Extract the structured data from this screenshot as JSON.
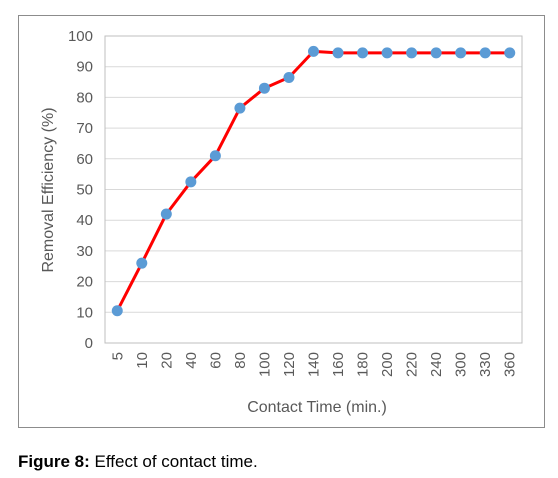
{
  "caption": {
    "label": "Figure 8:",
    "text": "Effect of contact time."
  },
  "chart_data": {
    "type": "line",
    "title": "",
    "xlabel": "Contact Time (min.)",
    "ylabel": "Removal Efficiency (%)",
    "ylim": [
      0,
      100
    ],
    "yticks": [
      "0",
      "10",
      "20",
      "30",
      "40",
      "50",
      "60",
      "70",
      "80",
      "90",
      "100"
    ],
    "grid": "horizontal",
    "legend": "none",
    "categories": [
      "5",
      "10",
      "20",
      "40",
      "60",
      "80",
      "100",
      "120",
      "140",
      "160",
      "180",
      "200",
      "220",
      "240",
      "300",
      "330",
      "360"
    ],
    "series": [
      {
        "values": [
          10.5,
          26,
          42,
          52.5,
          61,
          76.5,
          83,
          86.5,
          95,
          94.5,
          94.5,
          94.5,
          94.5,
          94.5,
          94.5,
          94.5,
          94.5
        ],
        "line_color": "#ff0000",
        "marker_color": "#5b9bd5"
      }
    ]
  }
}
